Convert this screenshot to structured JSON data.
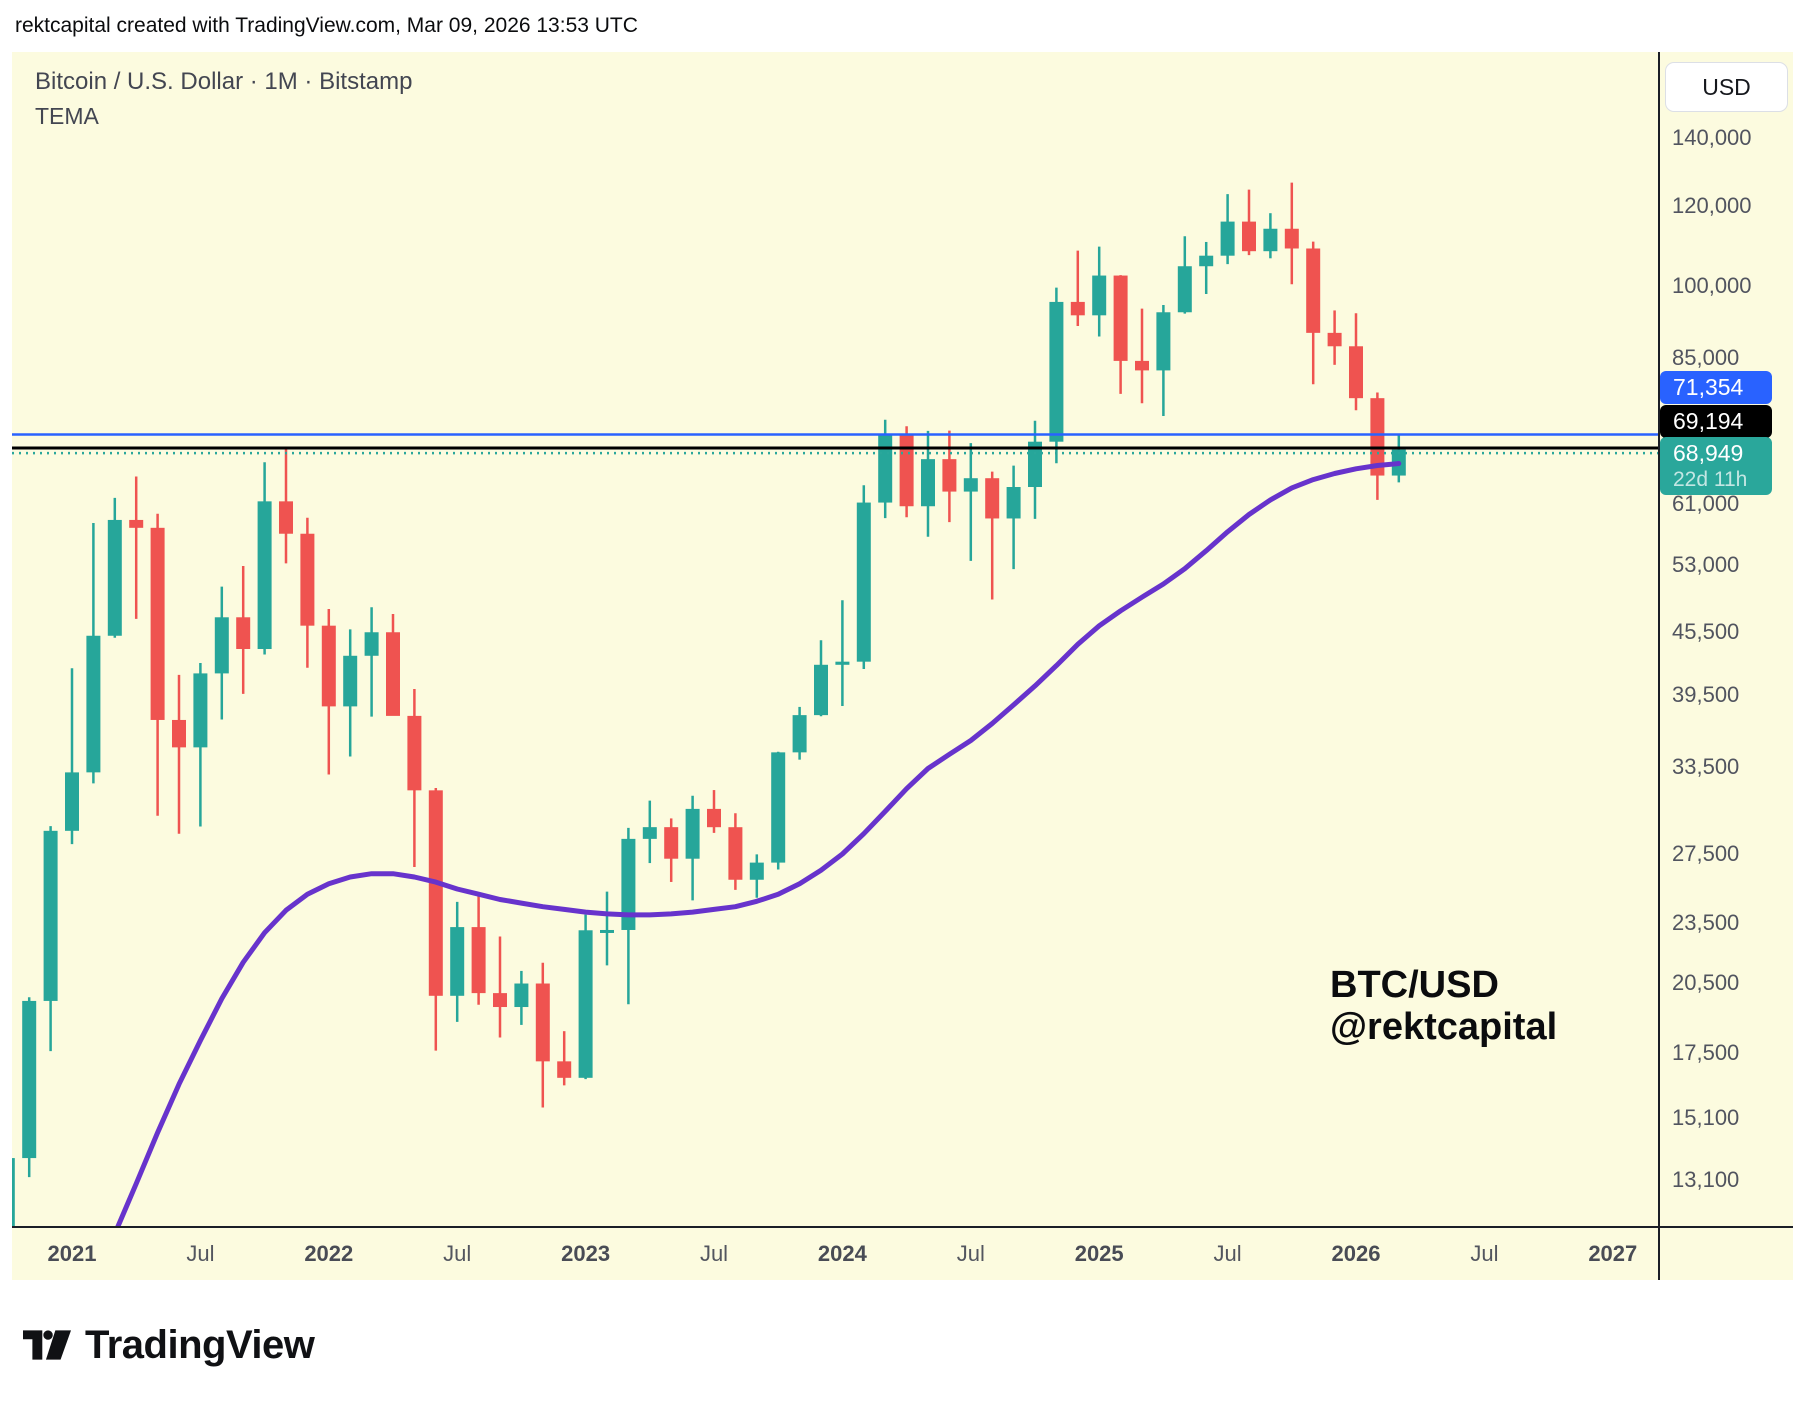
{
  "title_bar": {
    "text": "rektcapital created with TradingView.com, Mar 09, 2026 13:53 UTC"
  },
  "legend": {
    "symbol_line": "Bitcoin / U.S. Dollar · 1M · Bitstamp",
    "indicator": "TEMA"
  },
  "watermark": {
    "line1": "BTC/USD",
    "line2": "@rektcapital"
  },
  "price_axis": {
    "currency_button": "USD",
    "ticks": [
      {
        "label": "140,000",
        "value": 140000
      },
      {
        "label": "120,000",
        "value": 120000
      },
      {
        "label": "100,000",
        "value": 100000
      },
      {
        "label": "85,000",
        "value": 85000
      },
      {
        "label": "61,000",
        "value": 61000
      },
      {
        "label": "53,000",
        "value": 53000
      },
      {
        "label": "45,500",
        "value": 45500
      },
      {
        "label": "39,500",
        "value": 39500
      },
      {
        "label": "33,500",
        "value": 33500
      },
      {
        "label": "27,500",
        "value": 27500
      },
      {
        "label": "23,500",
        "value": 23500
      },
      {
        "label": "20,500",
        "value": 20500
      },
      {
        "label": "17,500",
        "value": 17500
      },
      {
        "label": "15,100",
        "value": 15100
      },
      {
        "label": "13,100",
        "value": 13100
      }
    ]
  },
  "time_axis": {
    "ticks": [
      {
        "label": "2021",
        "m": 0,
        "bold": true
      },
      {
        "label": "Jul",
        "m": 6,
        "bold": false
      },
      {
        "label": "2022",
        "m": 12,
        "bold": true
      },
      {
        "label": "Jul",
        "m": 18,
        "bold": false
      },
      {
        "label": "2023",
        "m": 24,
        "bold": true
      },
      {
        "label": "Jul",
        "m": 30,
        "bold": false
      },
      {
        "label": "2024",
        "m": 36,
        "bold": true
      },
      {
        "label": "Jul",
        "m": 42,
        "bold": false
      },
      {
        "label": "2025",
        "m": 48,
        "bold": true
      },
      {
        "label": "Jul",
        "m": 54,
        "bold": false
      },
      {
        "label": "2026",
        "m": 60,
        "bold": true
      },
      {
        "label": "Jul",
        "m": 66,
        "bold": false
      },
      {
        "label": "2027",
        "m": 72,
        "bold": true
      }
    ]
  },
  "price_lines": [
    {
      "price": 71354,
      "label": "71,354",
      "sub": null,
      "color": "#2962ff",
      "style": "solid",
      "width": 2.5
    },
    {
      "price": 69194,
      "label": "69,194",
      "sub": null,
      "color": "#000000",
      "style": "solid",
      "width": 3
    },
    {
      "price": 68949,
      "label": "68,949",
      "sub": "22d 11h",
      "color": "#2aa79b",
      "style": "dotted",
      "width": 2.5
    }
  ],
  "colors": {
    "chart_background": "#FCFBDF",
    "page_background": "#ffffff",
    "up": "#26a69a",
    "down": "#ef5350",
    "tema": "#6733cc",
    "axis_border": "#1b1e26",
    "axis_text": "#51545f"
  },
  "logo": {
    "text": "TradingView"
  },
  "chart_data": {
    "type": "candlestick",
    "title": "Bitcoin / U.S. Dollar · 1M · Bitstamp",
    "symbol": "BTC/USD",
    "interval": "1M",
    "exchange": "Bitstamp",
    "unit": "USD",
    "scale": "log",
    "last_price": 68949,
    "bar_countdown": "22d 11h",
    "note": "m = months since Jan 2021; candles are [m, open, high, low, close]",
    "candles": [
      [
        -3,
        10790,
        14100,
        10400,
        13780
      ],
      [
        -2,
        13780,
        19863,
        13195,
        19695
      ],
      [
        -1,
        19695,
        29300,
        17572,
        28990
      ],
      [
        0,
        28990,
        41950,
        28130,
        33108
      ],
      [
        1,
        33110,
        58352,
        32296,
        45164
      ],
      [
        2,
        45164,
        61788,
        44962,
        58763
      ],
      [
        3,
        58763,
        64870,
        46930,
        57720
      ],
      [
        4,
        57720,
        59592,
        30000,
        37298
      ],
      [
        5,
        37298,
        41322,
        28800,
        35045
      ],
      [
        6,
        35045,
        42448,
        29278,
        41461
      ],
      [
        7,
        41461,
        50500,
        37332,
        47100
      ],
      [
        8,
        47100,
        52920,
        39573,
        43824
      ],
      [
        9,
        43824,
        66999,
        43283,
        61300
      ],
      [
        10,
        61300,
        69000,
        53245,
        56950
      ],
      [
        11,
        56950,
        59053,
        42000,
        46211
      ],
      [
        12,
        46211,
        47990,
        32950,
        38466
      ],
      [
        13,
        38466,
        45821,
        34322,
        43155
      ],
      [
        14,
        43155,
        48189,
        37578,
        45525
      ],
      [
        15,
        45525,
        47448,
        37702,
        37644
      ],
      [
        16,
        37644,
        40022,
        26700,
        31784
      ],
      [
        17,
        31784,
        31957,
        17593,
        19926
      ],
      [
        18,
        19926,
        24668,
        18780,
        23293
      ],
      [
        19,
        23293,
        25211,
        19526,
        20048
      ],
      [
        20,
        20048,
        22799,
        18125,
        19424
      ],
      [
        21,
        19424,
        21085,
        18650,
        20490
      ],
      [
        22,
        20490,
        21480,
        15460,
        17168
      ],
      [
        23,
        17168,
        18387,
        16256,
        16537
      ],
      [
        24,
        16537,
        23960,
        16490,
        23125
      ],
      [
        25,
        23125,
        25250,
        21351,
        23141
      ],
      [
        26,
        23141,
        29184,
        19549,
        28465
      ],
      [
        27,
        28465,
        31050,
        26942,
        29233
      ],
      [
        28,
        29233,
        29820,
        25810,
        27210
      ],
      [
        29,
        27210,
        31400,
        24750,
        30472
      ],
      [
        30,
        30472,
        31804,
        28855,
        29230
      ],
      [
        31,
        29230,
        30175,
        25350,
        25940
      ],
      [
        32,
        25940,
        27480,
        24900,
        26970
      ],
      [
        33,
        26970,
        34700,
        26550,
        34650
      ],
      [
        34,
        34650,
        38420,
        34080,
        37710
      ],
      [
        35,
        37710,
        44700,
        37615,
        42280
      ],
      [
        36,
        42280,
        48960,
        38500,
        42580
      ],
      [
        37,
        42580,
        63585,
        41880,
        61130
      ],
      [
        38,
        61130,
        73794,
        59005,
        71280
      ],
      [
        39,
        71280,
        72715,
        59120,
        60622
      ],
      [
        40,
        60622,
        71940,
        56555,
        67470
      ],
      [
        41,
        67470,
        71997,
        58470,
        62675
      ],
      [
        42,
        62675,
        69980,
        53550,
        64610
      ],
      [
        43,
        64610,
        65590,
        49050,
        58960
      ],
      [
        44,
        58960,
        66490,
        52550,
        63330
      ],
      [
        45,
        63330,
        73620,
        58900,
        70200
      ],
      [
        46,
        70200,
        99645,
        66835,
        96450
      ],
      [
        47,
        96450,
        108364,
        91317,
        93557
      ],
      [
        48,
        93557,
        109358,
        89164,
        102405
      ],
      [
        49,
        102405,
        102500,
        78258,
        84349
      ],
      [
        50,
        84349,
        95000,
        76606,
        82548
      ],
      [
        51,
        82548,
        95768,
        74420,
        94207
      ],
      [
        52,
        94207,
        111980,
        93905,
        104598
      ],
      [
        53,
        104598,
        110530,
        98200,
        107135
      ],
      [
        54,
        107135,
        123218,
        105110,
        115765
      ],
      [
        55,
        115765,
        124500,
        107270,
        108235
      ],
      [
        56,
        108235,
        118000,
        106500,
        113900
      ],
      [
        57,
        113900,
        126500,
        100400,
        108900
      ],
      [
        58,
        108900,
        110600,
        80000,
        89900
      ],
      [
        59,
        89900,
        94600,
        83600,
        87200
      ],
      [
        60,
        87200,
        94000,
        75400,
        77500
      ],
      [
        61,
        77500,
        78500,
        61500,
        65000
      ],
      [
        62,
        65000,
        71500,
        64000,
        68949
      ]
    ],
    "tema": [
      [
        1,
        10300
      ],
      [
        2,
        11600
      ],
      [
        3,
        13000
      ],
      [
        4,
        14600
      ],
      [
        5,
        16300
      ],
      [
        6,
        18000
      ],
      [
        7,
        19800
      ],
      [
        8,
        21500
      ],
      [
        9,
        23000
      ],
      [
        10,
        24200
      ],
      [
        11,
        25100
      ],
      [
        12,
        25700
      ],
      [
        13,
        26100
      ],
      [
        14,
        26300
      ],
      [
        15,
        26300
      ],
      [
        16,
        26100
      ],
      [
        17,
        25800
      ],
      [
        18,
        25400
      ],
      [
        19,
        25100
      ],
      [
        20,
        24800
      ],
      [
        21,
        24600
      ],
      [
        22,
        24400
      ],
      [
        23,
        24250
      ],
      [
        24,
        24100
      ],
      [
        25,
        24000
      ],
      [
        26,
        23950
      ],
      [
        27,
        23950
      ],
      [
        28,
        24000
      ],
      [
        29,
        24100
      ],
      [
        30,
        24250
      ],
      [
        31,
        24400
      ],
      [
        32,
        24700
      ],
      [
        33,
        25100
      ],
      [
        34,
        25700
      ],
      [
        35,
        26500
      ],
      [
        36,
        27500
      ],
      [
        37,
        28800
      ],
      [
        38,
        30300
      ],
      [
        39,
        31900
      ],
      [
        40,
        33400
      ],
      [
        41,
        34500
      ],
      [
        42,
        35600
      ],
      [
        43,
        37000
      ],
      [
        44,
        38600
      ],
      [
        45,
        40300
      ],
      [
        46,
        42200
      ],
      [
        47,
        44300
      ],
      [
        48,
        46200
      ],
      [
        49,
        47800
      ],
      [
        50,
        49300
      ],
      [
        51,
        50800
      ],
      [
        52,
        52600
      ],
      [
        53,
        54800
      ],
      [
        54,
        57200
      ],
      [
        55,
        59500
      ],
      [
        56,
        61500
      ],
      [
        57,
        63200
      ],
      [
        58,
        64400
      ],
      [
        59,
        65300
      ],
      [
        60,
        66000
      ],
      [
        61,
        66500
      ],
      [
        62,
        66800
      ]
    ]
  }
}
